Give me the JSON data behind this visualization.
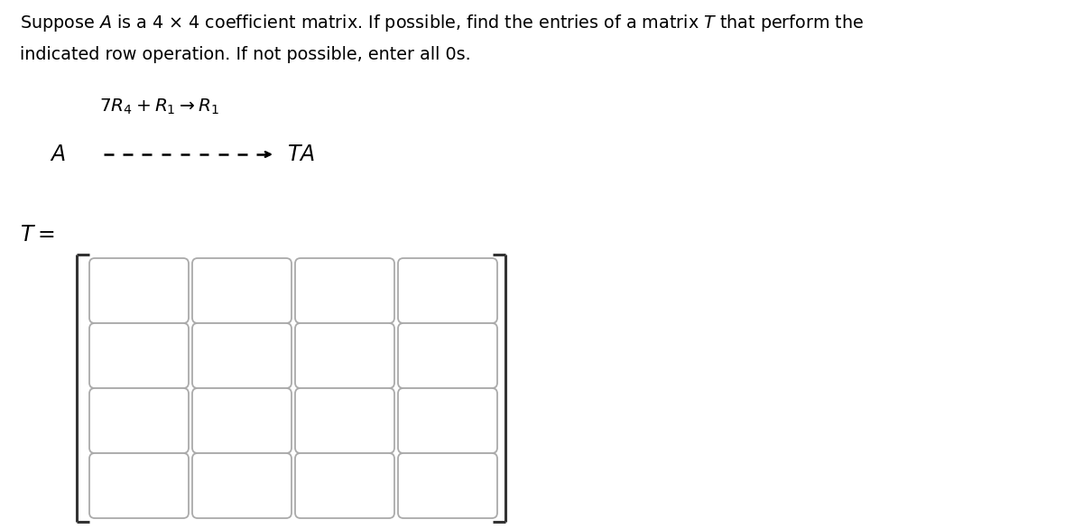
{
  "bg_color": "#ffffff",
  "text_color": "#000000",
  "arrow_color": "#000000",
  "box_edge_color": "#aaaaaa",
  "bracket_color": "#333333",
  "n_rows": 4,
  "n_cols": 4,
  "fig_width": 12.0,
  "fig_height": 5.86,
  "dpi": 100
}
